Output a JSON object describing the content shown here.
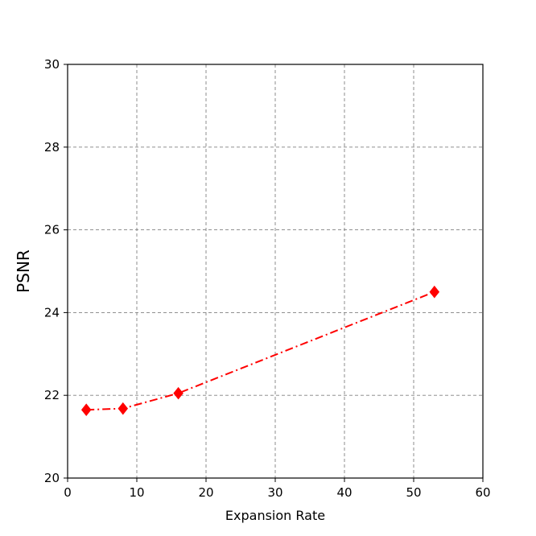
{
  "chart_data": {
    "type": "line",
    "title": "",
    "xlabel": "Expansion Rate",
    "ylabel": "PSNR",
    "xlim": [
      0,
      60
    ],
    "ylim": [
      20,
      30
    ],
    "xticks": [
      0,
      10,
      20,
      30,
      40,
      50,
      60
    ],
    "yticks": [
      20,
      22,
      24,
      26,
      28,
      30
    ],
    "grid": true,
    "legend": "none",
    "series": [
      {
        "x": [
          2.7,
          8,
          16,
          53
        ],
        "y": [
          21.65,
          21.68,
          22.05,
          24.5
        ],
        "color": "#ff0000",
        "line_style": "dash-dot",
        "marker": "diamond"
      }
    ]
  }
}
